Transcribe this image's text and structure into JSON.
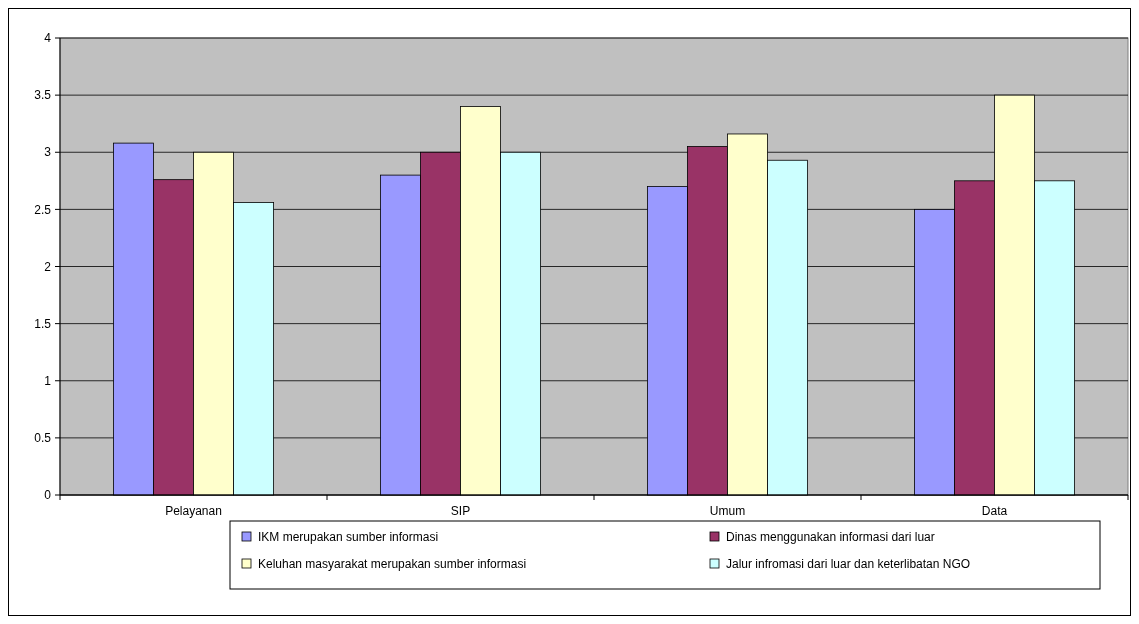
{
  "chart_data": {
    "type": "bar",
    "categories": [
      "Pelayanan",
      "SIP",
      "Umum",
      "Data"
    ],
    "series": [
      {
        "name": "IKM merupakan sumber informasi",
        "color": "#9999ff",
        "values": [
          3.08,
          2.8,
          2.7,
          2.5
        ]
      },
      {
        "name": "Dinas menggunakan informasi dari luar",
        "color": "#993366",
        "values": [
          2.76,
          3.0,
          3.05,
          2.75
        ]
      },
      {
        "name": "Keluhan masyarakat merupakan sumber informasi",
        "color": "#ffffcc",
        "values": [
          3.0,
          3.4,
          3.16,
          3.5
        ]
      },
      {
        "name": "Jalur infromasi dari luar dan keterlibatan NGO",
        "color": "#ccffff",
        "values": [
          2.56,
          3.0,
          2.93,
          2.75
        ]
      }
    ],
    "ylim": [
      0,
      4
    ],
    "yticks": [
      0,
      0.5,
      1,
      1.5,
      2,
      2.5,
      3,
      3.5,
      4
    ],
    "grid": "y",
    "legend": "bottom"
  }
}
